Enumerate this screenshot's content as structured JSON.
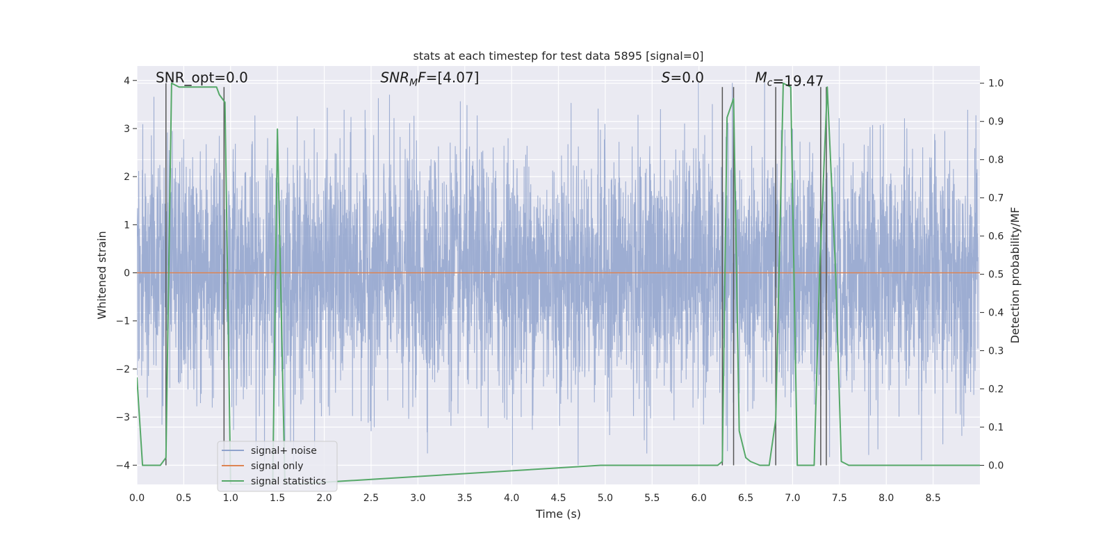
{
  "chart_data": {
    "type": "line",
    "title": "stats at each timestep for test data 5895 [signal=0]",
    "xlabel": "Time (s)",
    "ylabel": "Whitened strain",
    "ylabel_right": "Detection probability/MF",
    "xlim": [
      0.0,
      9.0
    ],
    "ylim": [
      -4.4,
      4.3
    ],
    "ylim_right": [
      -0.05,
      1.045
    ],
    "x_ticks": [
      0.0,
      0.5,
      1.0,
      1.5,
      2.0,
      2.5,
      3.0,
      3.5,
      4.0,
      4.5,
      5.0,
      5.5,
      6.0,
      6.5,
      7.0,
      7.5,
      8.0,
      8.5
    ],
    "x_tick_labels": [
      "0.0",
      "0.5",
      "1.0",
      "1.5",
      "2.0",
      "2.5",
      "3.0",
      "3.5",
      "4.0",
      "4.5",
      "5.0",
      "5.5",
      "6.0",
      "6.5",
      "7.0",
      "7.5",
      "8.0",
      "8.5"
    ],
    "y_ticks": [
      -4,
      -3,
      -2,
      -1,
      0,
      1,
      2,
      3,
      4
    ],
    "y_tick_labels": [
      "−4",
      "−3",
      "−2",
      "−1",
      "0",
      "1",
      "2",
      "3",
      "4"
    ],
    "y_right_ticks": [
      0.0,
      0.1,
      0.2,
      0.3,
      0.4,
      0.5,
      0.6,
      0.7,
      0.8,
      0.9,
      1.0
    ],
    "y_right_tick_labels": [
      "0.0",
      "0.1",
      "0.2",
      "0.3",
      "0.4",
      "0.5",
      "0.6",
      "0.7",
      "0.8",
      "0.9",
      "1.0"
    ],
    "grid": true,
    "legend_position": "lower-left",
    "annotations": [
      {
        "text": "SNR_opt=0.0",
        "x": 0.2,
        "y": 4.05,
        "italic": false
      },
      {
        "text": "SNR",
        "sub": "M",
        "suffix": "F=[4.07]",
        "x": 2.6,
        "y": 4.05,
        "italic": true
      },
      {
        "text": "S",
        "suffix": "=0.0",
        "x": 5.6,
        "y": 4.05,
        "italic": true
      },
      {
        "text": "M",
        "sub": "c",
        "suffix": "=19.47",
        "x": 6.6,
        "y": 4.05,
        "italic": true
      }
    ],
    "series": [
      {
        "name": "signal+ noise",
        "color": "#8fa2cc",
        "axis": "left",
        "style": "noise-band",
        "x_range": [
          0.0,
          8.98
        ],
        "typical_amplitude": 1.6,
        "peak_range": [
          -4.0,
          3.95
        ]
      },
      {
        "name": "signal only",
        "color": "#dd8452",
        "axis": "left",
        "x": [
          0.0,
          9.0
        ],
        "y": [
          0.0,
          0.0
        ]
      },
      {
        "name": "signal statistics",
        "color": "#55a868",
        "axis": "right",
        "x": [
          0.0,
          0.06,
          0.1,
          0.25,
          0.31,
          0.37,
          0.45,
          0.85,
          0.88,
          0.94,
          1.0,
          1.45,
          1.5,
          1.58,
          1.62,
          4.95,
          5.05,
          5.15,
          5.25,
          6.2,
          6.25,
          6.3,
          6.37,
          6.43,
          6.5,
          6.55,
          6.65,
          6.75,
          6.82,
          6.9,
          6.98,
          7.05,
          7.23,
          7.29,
          7.37,
          7.46,
          7.52,
          7.6,
          9.0
        ],
        "y": [
          0.23,
          0.0,
          0.0,
          0.0,
          0.02,
          1.0,
          0.99,
          0.99,
          0.97,
          0.95,
          -0.05,
          -0.05,
          0.88,
          -0.05,
          -0.05,
          0.0,
          0.0,
          0.0,
          0.0,
          0.0,
          0.01,
          0.91,
          0.96,
          0.09,
          0.02,
          0.01,
          0.0,
          0.0,
          0.12,
          1.0,
          0.99,
          0.0,
          0.0,
          0.52,
          0.99,
          0.5,
          0.01,
          0.0,
          0.0
        ]
      }
    ],
    "vertical_lines": [
      {
        "x": 0.31,
        "y_top": 1.0
      },
      {
        "x": 0.93,
        "y_top": 0.99
      },
      {
        "x": 6.25,
        "y_top": 0.99
      },
      {
        "x": 6.37,
        "y_top": 0.99
      },
      {
        "x": 6.82,
        "y_top": 0.99
      },
      {
        "x": 7.3,
        "y_top": 0.99
      },
      {
        "x": 7.36,
        "y_top": 0.99
      }
    ]
  }
}
